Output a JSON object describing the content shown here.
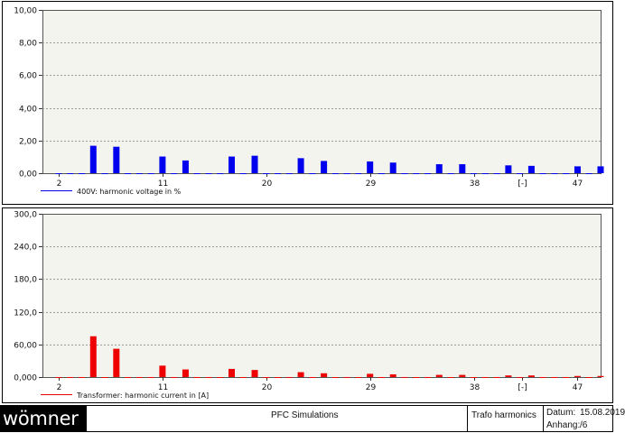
{
  "chart_data": [
    {
      "type": "bar",
      "x": [
        2,
        3,
        4,
        5,
        6,
        7,
        8,
        9,
        10,
        11,
        12,
        13,
        14,
        15,
        16,
        17,
        18,
        19,
        20,
        21,
        22,
        23,
        24,
        25,
        26,
        27,
        28,
        29,
        30,
        31,
        32,
        33,
        34,
        35,
        36,
        37,
        38,
        39,
        40,
        41,
        42,
        43,
        44,
        45,
        46,
        47,
        48,
        49
      ],
      "x_tick_labels": [
        "2",
        "11",
        "20",
        "29",
        "38",
        "[-]",
        "47"
      ],
      "values": [
        0,
        0,
        0,
        1.68,
        0,
        1.62,
        0,
        0,
        0,
        1.02,
        0,
        0.78,
        0,
        0,
        0,
        1.02,
        0,
        1.07,
        0,
        0,
        0,
        0.92,
        0,
        0.75,
        0,
        0,
        0,
        0.72,
        0,
        0.65,
        0,
        0,
        0,
        0.55,
        0,
        0.55,
        0,
        0,
        0,
        0.48,
        0,
        0.45,
        0,
        0,
        0,
        0.42,
        0,
        0.42
      ],
      "ylim": [
        0,
        10
      ],
      "y_ticks": [
        "0,00",
        "2,00",
        "4,00",
        "6,00",
        "8,00",
        "10,00"
      ],
      "grid": true,
      "legend": "400V: harmonic voltage in %",
      "color": "#0000ee"
    },
    {
      "type": "bar",
      "x": [
        2,
        3,
        4,
        5,
        6,
        7,
        8,
        9,
        10,
        11,
        12,
        13,
        14,
        15,
        16,
        17,
        18,
        19,
        20,
        21,
        22,
        23,
        24,
        25,
        26,
        27,
        28,
        29,
        30,
        31,
        32,
        33,
        34,
        35,
        36,
        37,
        38,
        39,
        40,
        41,
        42,
        43,
        44,
        45,
        46,
        47,
        48,
        49
      ],
      "x_tick_labels": [
        "2",
        "11",
        "20",
        "29",
        "38",
        "[-]",
        "47"
      ],
      "values": [
        0,
        0,
        0,
        75,
        0,
        52,
        0,
        0,
        0,
        21,
        0,
        14,
        0,
        0,
        0,
        15,
        0,
        13,
        0,
        0,
        0,
        9,
        0,
        7,
        0,
        0,
        0,
        6,
        0,
        5,
        0,
        0,
        0,
        4,
        0,
        4,
        0,
        0,
        0,
        3,
        0,
        3,
        0,
        0,
        0,
        2,
        0,
        2
      ],
      "ylim": [
        0,
        300
      ],
      "y_ticks": [
        "0,000",
        "60,00",
        "120,0",
        "180,0",
        "240,0",
        "300,0"
      ],
      "grid": true,
      "legend": "Transformer: harmonic current in [A]",
      "color": "#ee0000"
    }
  ],
  "footer": {
    "logo": "wömner",
    "title": "PFC Simulations",
    "subtitle": "Trafo harmonics",
    "datum_label": "Datum:",
    "datum_value": "15.08.2019",
    "anhang_label": "Anhang:",
    "anhang_value": "/6"
  }
}
